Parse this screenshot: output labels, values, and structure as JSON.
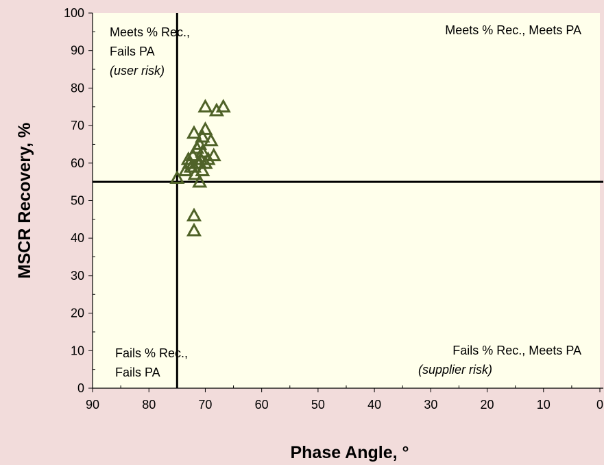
{
  "chart_data": {
    "type": "scatter",
    "title": "",
    "xlabel": "Phase Angle, °",
    "ylabel": "MSCR Recovery, %",
    "xlim": [
      90,
      0
    ],
    "ylim": [
      0,
      100
    ],
    "x_reversed": true,
    "x_ticks": [
      90,
      80,
      70,
      60,
      50,
      40,
      30,
      20,
      10,
      0
    ],
    "y_ticks": [
      0,
      10,
      20,
      30,
      40,
      50,
      60,
      70,
      80,
      90,
      100
    ],
    "grid": false,
    "legend": "none",
    "marker": "open-triangle",
    "colors": {
      "page_background": "#f2dcdb",
      "plot_background": "#ffffeb",
      "marker": "#4f6228",
      "threshold_lines": "#000000"
    },
    "thresholds": {
      "x": 75,
      "y": 55
    },
    "quadrant_labels": [
      {
        "id": "top-left",
        "lines": [
          "Meets % Rec.,",
          "Fails PA"
        ],
        "note": "(user risk)"
      },
      {
        "id": "top-right",
        "lines": [
          "Meets % Rec., Meets PA"
        ],
        "note": ""
      },
      {
        "id": "bottom-left",
        "lines": [
          "Fails % Rec.,",
          "Fails PA"
        ],
        "note": ""
      },
      {
        "id": "bottom-right",
        "lines": [
          "Fails % Rec., Meets PA"
        ],
        "note": "(supplier risk)"
      }
    ],
    "series": [
      {
        "x": [
          70.0,
          68.0,
          66.8,
          72.0,
          70.5,
          70.0,
          69.0,
          71.0,
          68.5,
          71.5,
          70.5,
          72.2,
          70.8,
          71.3,
          73.0,
          72.8,
          72.0,
          71.0,
          70.0,
          73.5,
          75.0,
          71.0,
          72.0,
          72.0,
          70.5,
          69.5,
          72.5,
          71.8
        ],
        "y": [
          75.0,
          74.0,
          75.0,
          68.0,
          67.0,
          69.0,
          66.0,
          65.0,
          62.0,
          64.0,
          63.0,
          62.0,
          61.0,
          60.0,
          61.0,
          60.0,
          59.0,
          60.0,
          60.0,
          58.0,
          56.0,
          55.0,
          46.0,
          42.0,
          58.0,
          61.0,
          59.0,
          57.0
        ]
      }
    ]
  }
}
